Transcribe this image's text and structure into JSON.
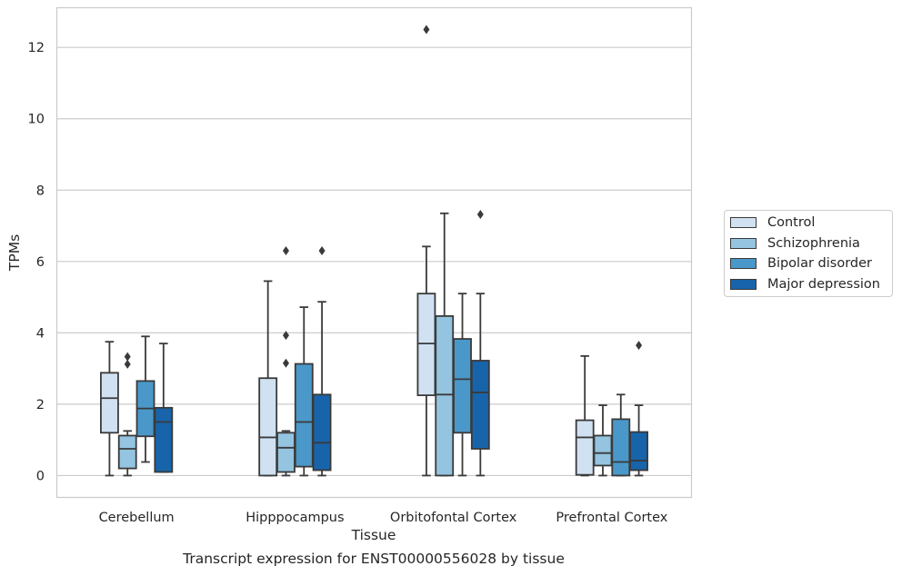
{
  "caption": "Transcript expression for ENST00000556028 by tissue",
  "chart_data": {
    "type": "box",
    "title": "",
    "xlabel": "Tissue",
    "ylabel": "TPMs",
    "ylim": [
      -0.6,
      13.1
    ],
    "yticks": [
      0,
      2,
      4,
      6,
      8,
      10,
      12
    ],
    "grid": "horizontal",
    "legend_position": "right",
    "categories": [
      "Cerebellum",
      "Hipppocampus",
      "Orbitofontal Cortex",
      "Prefrontal Cortex"
    ],
    "series": [
      {
        "name": "Control",
        "color": "#d0e1f2",
        "boxes": [
          {
            "whisker_low": 0,
            "q1": 1.2,
            "median": 2.17,
            "q3": 2.88,
            "whisker_high": 3.75,
            "outliers": []
          },
          {
            "whisker_low": 0,
            "q1": 0,
            "median": 1.07,
            "q3": 2.73,
            "whisker_high": 5.45,
            "outliers": []
          },
          {
            "whisker_low": 0,
            "q1": 2.25,
            "median": 3.7,
            "q3": 5.1,
            "whisker_high": 6.42,
            "outliers": [
              12.5
            ]
          },
          {
            "whisker_low": 0,
            "q1": 0.02,
            "median": 1.07,
            "q3": 1.55,
            "whisker_high": 3.35,
            "outliers": []
          }
        ]
      },
      {
        "name": "Schizophrenia",
        "color": "#94c4df",
        "boxes": [
          {
            "whisker_low": 0,
            "q1": 0.2,
            "median": 0.75,
            "q3": 1.12,
            "whisker_high": 1.25,
            "outliers": [
              3.12,
              3.33
            ]
          },
          {
            "whisker_low": 0,
            "q1": 0.1,
            "median": 0.78,
            "q3": 1.2,
            "whisker_high": 1.25,
            "outliers": [
              3.15,
              3.93,
              6.3
            ]
          },
          {
            "whisker_low": 0,
            "q1": 0,
            "median": 2.27,
            "q3": 4.47,
            "whisker_high": 7.35,
            "outliers": []
          },
          {
            "whisker_low": 0,
            "q1": 0.28,
            "median": 0.63,
            "q3": 1.12,
            "whisker_high": 1.97,
            "outliers": []
          }
        ]
      },
      {
        "name": "Bipolar disorder",
        "color": "#4a98c9",
        "boxes": [
          {
            "whisker_low": 0.38,
            "q1": 1.1,
            "median": 1.88,
            "q3": 2.65,
            "whisker_high": 3.9,
            "outliers": []
          },
          {
            "whisker_low": 0,
            "q1": 0.25,
            "median": 1.5,
            "q3": 3.13,
            "whisker_high": 4.72,
            "outliers": []
          },
          {
            "whisker_low": 0,
            "q1": 1.2,
            "median": 2.7,
            "q3": 3.83,
            "whisker_high": 5.1,
            "outliers": []
          },
          {
            "whisker_low": 0,
            "q1": 0,
            "median": 0.38,
            "q3": 1.58,
            "whisker_high": 2.27,
            "outliers": []
          }
        ]
      },
      {
        "name": "Major depression",
        "color": "#1764ab",
        "boxes": [
          {
            "whisker_low": 0.1,
            "q1": 0.1,
            "median": 1.5,
            "q3": 1.9,
            "whisker_high": 3.7,
            "outliers": []
          },
          {
            "whisker_low": 0,
            "q1": 0.15,
            "median": 0.92,
            "q3": 2.27,
            "whisker_high": 4.87,
            "outliers": [
              6.3
            ]
          },
          {
            "whisker_low": 0,
            "q1": 0.75,
            "median": 2.33,
            "q3": 3.22,
            "whisker_high": 5.1,
            "outliers": [
              7.32
            ]
          },
          {
            "whisker_low": 0,
            "q1": 0.15,
            "median": 0.42,
            "q3": 1.22,
            "whisker_high": 1.97,
            "outliers": [
              3.65
            ]
          }
        ]
      }
    ]
  }
}
